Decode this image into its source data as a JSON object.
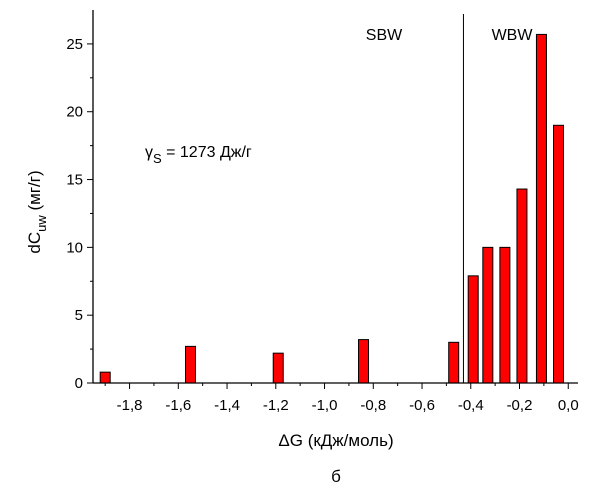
{
  "chart_data": {
    "type": "bar",
    "xlabel_prefix": "ΔG",
    "xlabel_rest": " (кДж/моль)",
    "ylabel_main": "dC",
    "ylabel_sub": "uw",
    "ylabel_rest": " (мг/г)",
    "xlim": [
      -1.95,
      0.04
    ],
    "ylim": [
      0,
      27.5
    ],
    "xticks": [
      -1.8,
      -1.6,
      -1.4,
      -1.2,
      -1.0,
      -0.8,
      -0.6,
      -0.4,
      -0.2,
      0.0
    ],
    "xtick_labels": [
      "-1,8",
      "-1,6",
      "-1,4",
      "-1,2",
      "-1,0",
      "-0,8",
      "-0,6",
      "-0,4",
      "-0,2",
      "0,0"
    ],
    "yticks": [
      0,
      5,
      10,
      15,
      20,
      25
    ],
    "ytick_labels": [
      "0",
      "5",
      "10",
      "15",
      "20",
      "25"
    ],
    "bar_color": "#ff0000",
    "bars": [
      {
        "x": -1.9,
        "y": 0.8
      },
      {
        "x": -1.55,
        "y": 2.7
      },
      {
        "x": -1.19,
        "y": 2.2
      },
      {
        "x": -0.84,
        "y": 3.2
      },
      {
        "x": -0.47,
        "y": 3.0
      },
      {
        "x": -0.39,
        "y": 7.9
      },
      {
        "x": -0.33,
        "y": 10.0
      },
      {
        "x": -0.26,
        "y": 10.0
      },
      {
        "x": -0.19,
        "y": 14.3
      },
      {
        "x": -0.11,
        "y": 25.7
      },
      {
        "x": -0.04,
        "y": 19.0
      }
    ],
    "vline_x": -0.43,
    "annotations": {
      "sbw": "SBW",
      "wbw": "WBW",
      "gamma_symbol": "γ",
      "gamma_sub": "S",
      "gamma_rest": " = 1273 Дж/г"
    },
    "caption": "б",
    "grid": false
  }
}
